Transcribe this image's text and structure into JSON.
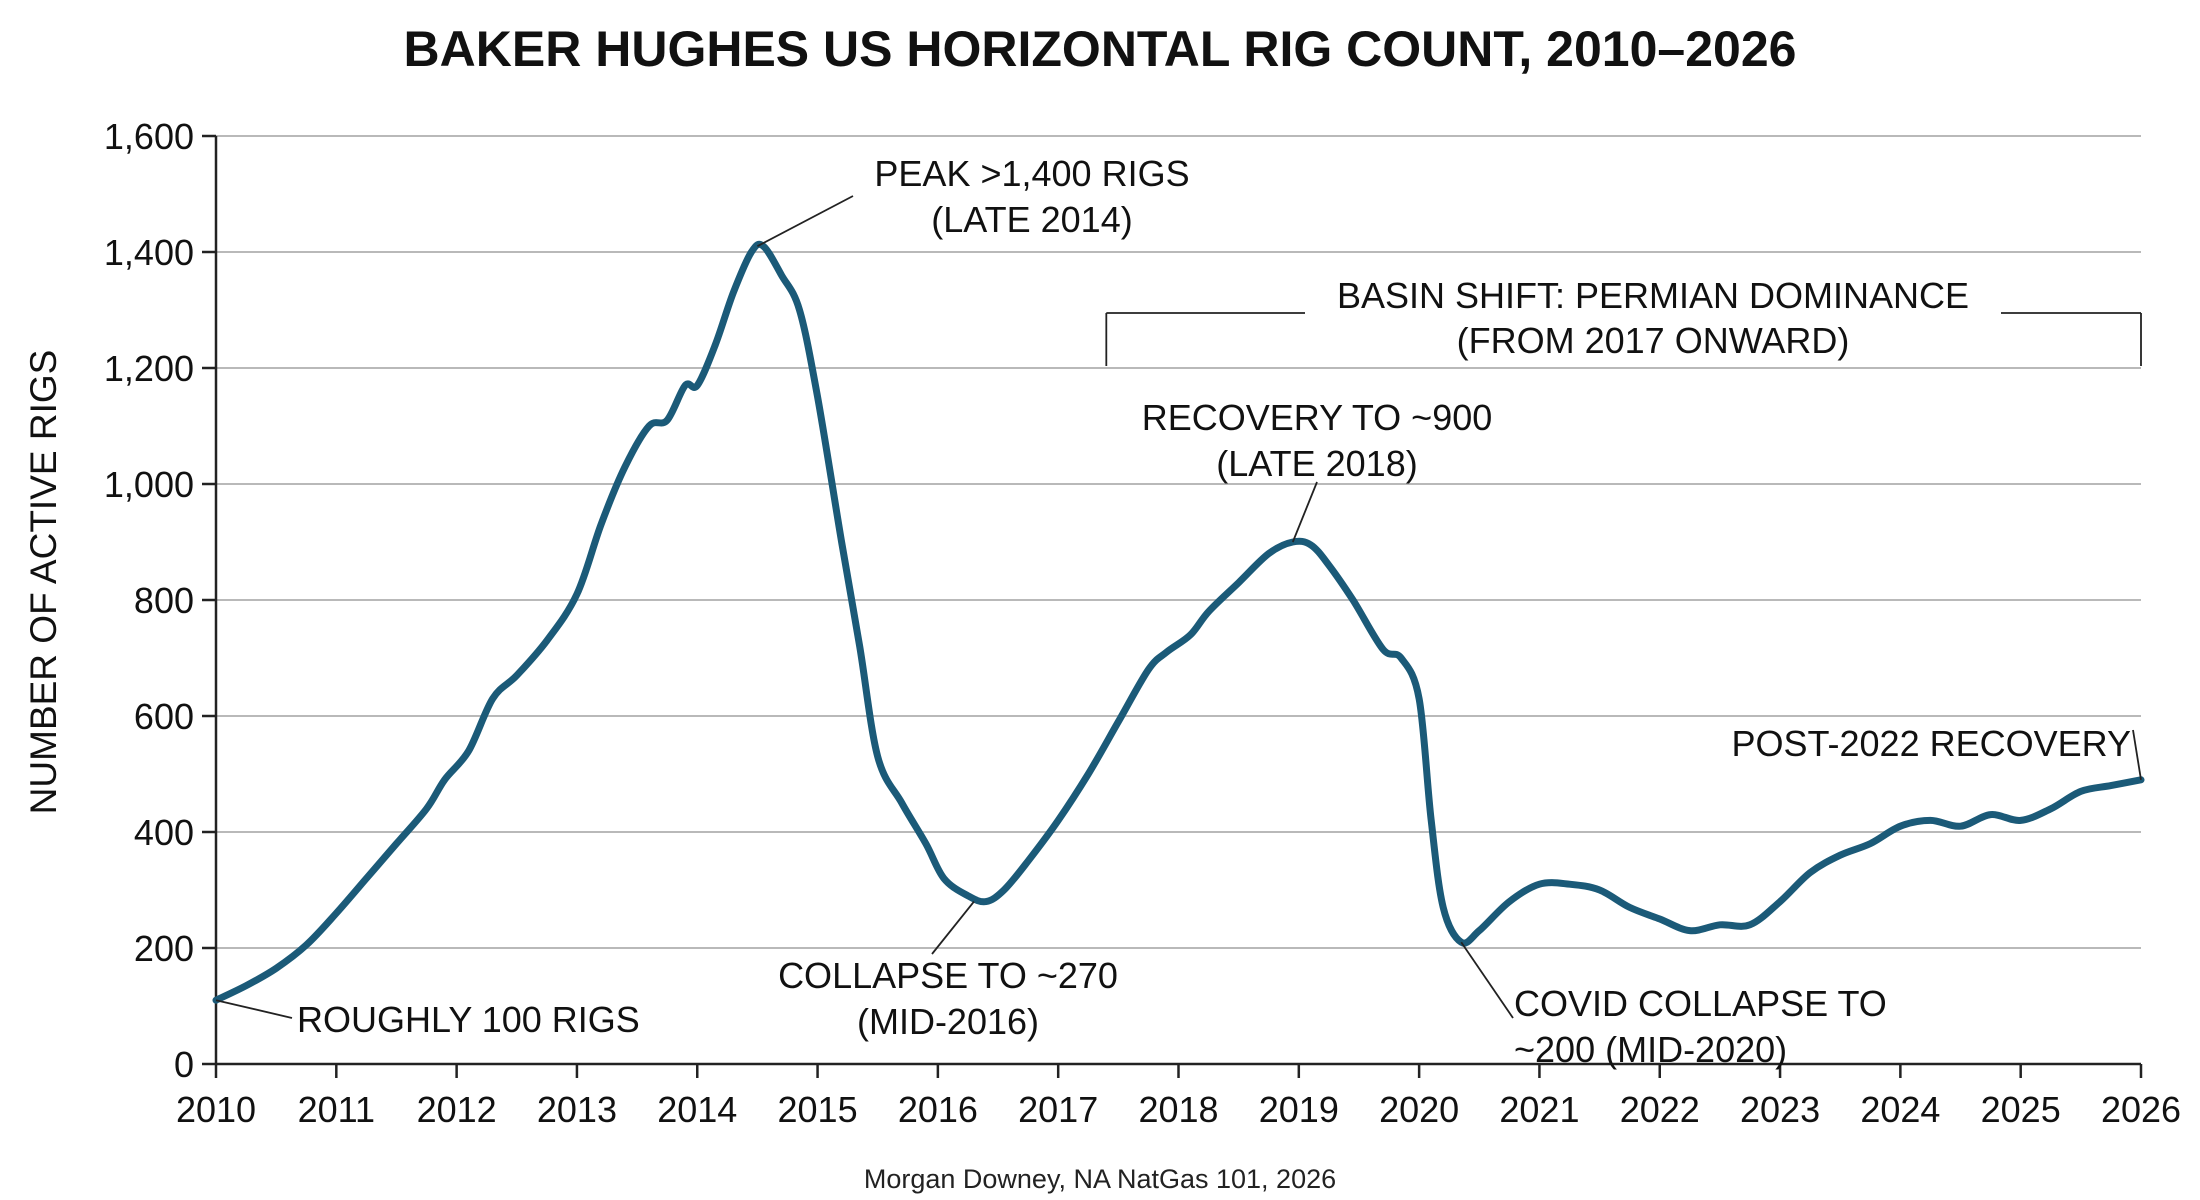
{
  "chart_data": {
    "type": "line",
    "title": "BAKER HUGHES US HORIZONTAL RIG COUNT, 2010–2026",
    "ylabel": "NUMBER OF ACTIVE RIGS",
    "xlabel": "",
    "xlim": [
      2010,
      2026
    ],
    "ylim": [
      0,
      1600
    ],
    "x_ticks": [
      "2010",
      "2011",
      "2012",
      "2013",
      "2014",
      "2015",
      "2016",
      "2017",
      "2018",
      "2019",
      "2020",
      "2021",
      "2022",
      "2023",
      "2024",
      "2025",
      "2026"
    ],
    "y_ticks": [
      "0",
      "200",
      "400",
      "600",
      "800",
      "1,000",
      "1,200",
      "1,400",
      "1,600"
    ],
    "grid": true,
    "line_color": "#1b5a78",
    "series": [
      {
        "name": "",
        "points": [
          [
            2010.0,
            110
          ],
          [
            2010.25,
            135
          ],
          [
            2010.5,
            165
          ],
          [
            2010.75,
            205
          ],
          [
            2011.0,
            260
          ],
          [
            2011.25,
            320
          ],
          [
            2011.5,
            380
          ],
          [
            2011.75,
            440
          ],
          [
            2011.9,
            490
          ],
          [
            2012.1,
            540
          ],
          [
            2012.3,
            630
          ],
          [
            2012.5,
            670
          ],
          [
            2012.75,
            730
          ],
          [
            2013.0,
            810
          ],
          [
            2013.2,
            930
          ],
          [
            2013.4,
            1030
          ],
          [
            2013.6,
            1100
          ],
          [
            2013.75,
            1110
          ],
          [
            2013.9,
            1170
          ],
          [
            2014.0,
            1170
          ],
          [
            2014.15,
            1240
          ],
          [
            2014.3,
            1330
          ],
          [
            2014.45,
            1400
          ],
          [
            2014.55,
            1410
          ],
          [
            2014.7,
            1360
          ],
          [
            2014.85,
            1300
          ],
          [
            2015.0,
            1150
          ],
          [
            2015.2,
            900
          ],
          [
            2015.35,
            720
          ],
          [
            2015.5,
            530
          ],
          [
            2015.7,
            450
          ],
          [
            2015.9,
            380
          ],
          [
            2016.05,
            320
          ],
          [
            2016.25,
            290
          ],
          [
            2016.4,
            280
          ],
          [
            2016.55,
            300
          ],
          [
            2016.75,
            350
          ],
          [
            2017.0,
            420
          ],
          [
            2017.25,
            500
          ],
          [
            2017.5,
            590
          ],
          [
            2017.75,
            680
          ],
          [
            2017.9,
            710
          ],
          [
            2018.1,
            740
          ],
          [
            2018.25,
            780
          ],
          [
            2018.5,
            830
          ],
          [
            2018.75,
            880
          ],
          [
            2018.95,
            900
          ],
          [
            2019.1,
            895
          ],
          [
            2019.25,
            860
          ],
          [
            2019.45,
            800
          ],
          [
            2019.7,
            715
          ],
          [
            2019.85,
            700
          ],
          [
            2020.0,
            630
          ],
          [
            2020.1,
            420
          ],
          [
            2020.2,
            270
          ],
          [
            2020.35,
            210
          ],
          [
            2020.5,
            230
          ],
          [
            2020.75,
            280
          ],
          [
            2021.0,
            310
          ],
          [
            2021.25,
            310
          ],
          [
            2021.5,
            300
          ],
          [
            2021.75,
            270
          ],
          [
            2022.0,
            250
          ],
          [
            2022.25,
            230
          ],
          [
            2022.5,
            240
          ],
          [
            2022.75,
            240
          ],
          [
            2023.0,
            280
          ],
          [
            2023.25,
            330
          ],
          [
            2023.5,
            360
          ],
          [
            2023.75,
            380
          ],
          [
            2024.0,
            410
          ],
          [
            2024.25,
            420
          ],
          [
            2024.5,
            410
          ],
          [
            2024.75,
            430
          ],
          [
            2025.0,
            420
          ],
          [
            2025.25,
            440
          ],
          [
            2025.5,
            470
          ],
          [
            2025.75,
            480
          ],
          [
            2026.0,
            490
          ]
        ]
      }
    ],
    "annotations": [
      {
        "lines": [
          "ROUGHLY 100 RIGS"
        ],
        "x": 2010.0,
        "y": 110
      },
      {
        "lines": [
          "PEAK >1,400 RIGS",
          "(LATE 2014)"
        ],
        "x": 2014.5,
        "y": 1410
      },
      {
        "lines": [
          "COLLAPSE TO ~270",
          "(MID-2016)"
        ],
        "x": 2016.3,
        "y": 280
      },
      {
        "lines": [
          "RECOVERY TO ~900",
          "(LATE 2018)"
        ],
        "x": 2018.95,
        "y": 900
      },
      {
        "lines": [
          "COVID COLLAPSE TO",
          "~200 (MID-2020)"
        ],
        "x": 2020.35,
        "y": 210
      },
      {
        "lines": [
          "POST-2022 RECOVERY"
        ],
        "x": 2026.0,
        "y": 490
      }
    ],
    "basin_shift": {
      "lines": [
        "BASIN SHIFT: PERMIAN DOMINANCE",
        "(FROM 2017 ONWARD)"
      ],
      "x_start": 2017.4,
      "x_end": 2026.0
    }
  },
  "source": "Morgan Downey, NA NatGas 101, 2026"
}
